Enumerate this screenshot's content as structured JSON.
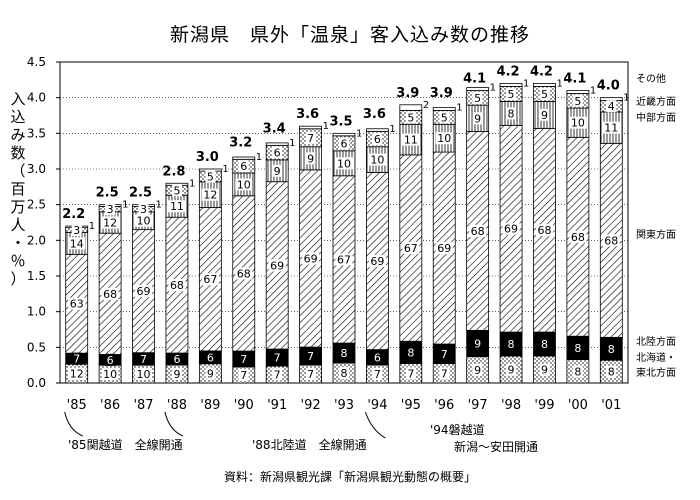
{
  "title": "新潟県　県外「温泉」客入込み数の推移",
  "ylabel_chars": [
    "入",
    "込",
    "み",
    "数",
    "（",
    "百",
    "万",
    "人",
    "・",
    "％",
    "）"
  ],
  "source": "資料：新潟県観光課「新潟県観光動態の概要」",
  "annotations": [
    {
      "text": "'85関越道　全線開通"
    },
    {
      "text": "'88北陸道　全線開通"
    },
    {
      "text": "'94磐越道"
    },
    {
      "text": "新潟～安田開通"
    }
  ],
  "legend": [
    {
      "label": "その他"
    },
    {
      "label": "近畿方面"
    },
    {
      "label": "中部方面"
    },
    {
      "label": "関東方面"
    },
    {
      "label": "北陸方面"
    },
    {
      "label": "北海道・"
    },
    {
      "label": "東北方面"
    }
  ],
  "colors": {
    "tohoku": "dotted",
    "hokuriku": "#000000",
    "kanto": "diagonal-hatch",
    "chubu": "vertical-hatch",
    "kinki": "dotted",
    "other": "#ffffff"
  },
  "chart_data": {
    "type": "bar",
    "stacked": true,
    "ylim": [
      0,
      4.5
    ],
    "yticks": [
      "0.0",
      "0.5",
      "1.0",
      "1.5",
      "2.0",
      "2.5",
      "3.0",
      "3.5",
      "4.0",
      "4.5"
    ],
    "categories": [
      "'85",
      "'86",
      "'87",
      "'88",
      "'89",
      "'90",
      "'91",
      "'92",
      "'93",
      "'94",
      "'95",
      "'96",
      "'97",
      "'98",
      "'99",
      "'00",
      "'01"
    ],
    "totals": [
      2.2,
      2.5,
      2.5,
      2.8,
      3.0,
      3.2,
      3.4,
      3.6,
      3.5,
      3.6,
      3.9,
      3.9,
      4.1,
      4.2,
      4.2,
      4.1,
      4.0
    ],
    "total_labels": [
      "2.2",
      "2.5",
      "2.5",
      "2.8",
      "3.0",
      "3.2",
      "3.4",
      "3.6",
      "3.5",
      "3.6",
      "3.9",
      "3.9",
      "4.1",
      "4.2",
      "4.2",
      "4.1",
      "4.0"
    ],
    "series": [
      {
        "name": "北海道・東北方面",
        "percent": [
          12,
          10,
          10,
          9,
          9,
          7,
          7,
          7,
          8,
          7,
          7,
          7,
          9,
          9,
          9,
          8,
          8
        ]
      },
      {
        "name": "北陸方面",
        "percent": [
          7,
          6,
          7,
          6,
          6,
          7,
          7,
          7,
          8,
          6,
          8,
          7,
          9,
          8,
          8,
          8,
          8
        ]
      },
      {
        "name": "関東方面",
        "percent": [
          63,
          68,
          69,
          68,
          67,
          68,
          69,
          69,
          67,
          69,
          67,
          69,
          68,
          69,
          68,
          68,
          68
        ]
      },
      {
        "name": "中部方面",
        "percent": [
          14,
          12,
          10,
          11,
          12,
          10,
          9,
          9,
          10,
          10,
          11,
          10,
          9,
          8,
          9,
          10,
          11
        ]
      },
      {
        "name": "近畿方面",
        "percent": [
          3,
          3,
          3,
          5,
          5,
          6,
          6,
          7,
          6,
          6,
          5,
          5,
          5,
          5,
          5,
          5,
          4
        ]
      },
      {
        "name": "その他",
        "percent": [
          1,
          1,
          1,
          1,
          1,
          1,
          1,
          1,
          1,
          1,
          2,
          1,
          1,
          1,
          1,
          1,
          1
        ]
      }
    ]
  }
}
